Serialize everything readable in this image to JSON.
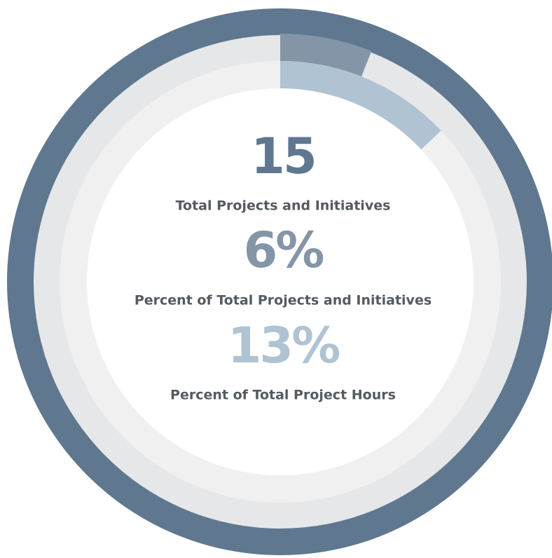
{
  "chart_data": {
    "type": "radial",
    "total": {
      "value": 15,
      "label": "Total Projects and Initiatives",
      "color": "#5f7890"
    },
    "ylim": [
      0,
      100
    ],
    "series": [
      {
        "name": "Percent of Total Projects and Initiatives",
        "color": "#8595a8",
        "values": [
          6
        ],
        "value_labels": [
          "6%"
        ]
      },
      {
        "name": "Percent of Total Project Hours",
        "color": "#b0c3d2",
        "values": [
          13
        ],
        "value_labels": [
          "13%"
        ]
      }
    ]
  }
}
